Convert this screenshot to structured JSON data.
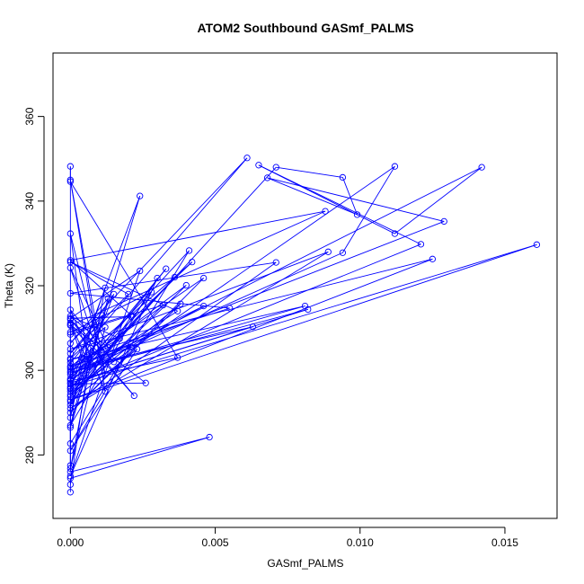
{
  "chart_data": {
    "type": "scatter",
    "title": "ATOM2 Southbound GASmf_PALMS",
    "xlabel": "GASmf_PALMS",
    "ylabel": "Theta (K)",
    "xlim": [
      -0.0006,
      0.0168
    ],
    "ylim": [
      265,
      375
    ],
    "x_ticks": [
      {
        "value": 0.0,
        "label": "0.000"
      },
      {
        "value": 0.005,
        "label": "0.005"
      },
      {
        "value": 0.01,
        "label": "0.010"
      },
      {
        "value": 0.015,
        "label": "0.015"
      }
    ],
    "y_ticks": [
      {
        "value": 280,
        "label": "280"
      },
      {
        "value": 300,
        "label": "300"
      },
      {
        "value": 320,
        "label": "320"
      },
      {
        "value": 340,
        "label": "340"
      },
      {
        "value": 360,
        "label": "360"
      }
    ],
    "grid": false,
    "connected": true,
    "color": "#0000ff",
    "marker": "open-circle",
    "points": [
      {
        "x": 0.0,
        "y": 271.2
      },
      {
        "x": 0.0,
        "y": 274.5
      },
      {
        "x": 0.0048,
        "y": 284.2
      },
      {
        "x": 0.0,
        "y": 276.0
      },
      {
        "x": 0.0,
        "y": 348.2
      },
      {
        "x": 0.0,
        "y": 344.6
      },
      {
        "x": 0.0037,
        "y": 303.0
      },
      {
        "x": 0.0,
        "y": 297.5
      },
      {
        "x": 0.0024,
        "y": 341.2
      },
      {
        "x": 0.0,
        "y": 286.5
      },
      {
        "x": 0.0013,
        "y": 317.0
      },
      {
        "x": 0.0,
        "y": 306.4
      },
      {
        "x": 0.0061,
        "y": 350.2
      },
      {
        "x": 0.0,
        "y": 301.8
      },
      {
        "x": 0.0,
        "y": 277.5
      },
      {
        "x": 0.0,
        "y": 308.5
      },
      {
        "x": 0.0021,
        "y": 313.0
      },
      {
        "x": 0.0,
        "y": 326.0
      },
      {
        "x": 0.0088,
        "y": 337.6
      },
      {
        "x": 0.0,
        "y": 310.6
      },
      {
        "x": 0.0,
        "y": 282.7
      },
      {
        "x": 0.0041,
        "y": 328.3
      },
      {
        "x": 0.0,
        "y": 298.0
      },
      {
        "x": 0.0042,
        "y": 325.6
      },
      {
        "x": 0.0,
        "y": 300.7
      },
      {
        "x": 0.0129,
        "y": 335.2
      },
      {
        "x": 0.0068,
        "y": 345.5
      },
      {
        "x": 0.0099,
        "y": 336.8
      },
      {
        "x": 0.0094,
        "y": 345.6
      },
      {
        "x": 0.0071,
        "y": 348.0
      },
      {
        "x": 0.0,
        "y": 295.0
      },
      {
        "x": 0.0112,
        "y": 348.2
      },
      {
        "x": 0.0094,
        "y": 327.8
      },
      {
        "x": 0.0,
        "y": 299.0
      },
      {
        "x": 0.0142,
        "y": 348.0
      },
      {
        "x": 0.0112,
        "y": 332.3
      },
      {
        "x": 0.0065,
        "y": 348.5
      },
      {
        "x": 0.0121,
        "y": 329.8
      },
      {
        "x": 0.0,
        "y": 296.2
      },
      {
        "x": 0.0161,
        "y": 329.7
      },
      {
        "x": 0.0,
        "y": 293.0
      },
      {
        "x": 0.0125,
        "y": 326.3
      },
      {
        "x": 0.0,
        "y": 305.0
      },
      {
        "x": 0.0089,
        "y": 328.0
      },
      {
        "x": 0.0,
        "y": 291.0
      },
      {
        "x": 0.0071,
        "y": 325.5
      },
      {
        "x": 0.0,
        "y": 318.2
      },
      {
        "x": 0.0055,
        "y": 314.7
      },
      {
        "x": 0.0,
        "y": 302.5
      },
      {
        "x": 0.0081,
        "y": 315.2
      },
      {
        "x": 0.0,
        "y": 299.5
      },
      {
        "x": 0.0082,
        "y": 314.4
      },
      {
        "x": 0.0,
        "y": 297.0
      },
      {
        "x": 0.0063,
        "y": 310.3
      },
      {
        "x": 0.0,
        "y": 300.3
      },
      {
        "x": 0.0046,
        "y": 321.8
      },
      {
        "x": 0.0,
        "y": 290.0
      },
      {
        "x": 0.0038,
        "y": 315.7
      },
      {
        "x": 0.0,
        "y": 294.3
      },
      {
        "x": 0.0036,
        "y": 322.0
      },
      {
        "x": 0.0,
        "y": 295.6
      },
      {
        "x": 0.0033,
        "y": 324.0
      },
      {
        "x": 0.0,
        "y": 296.8
      },
      {
        "x": 0.0026,
        "y": 297.0
      },
      {
        "x": 0.0,
        "y": 310.8
      },
      {
        "x": 0.0022,
        "y": 294.0
      },
      {
        "x": 0.0,
        "y": 312.0
      },
      {
        "x": 0.0015,
        "y": 302.0
      },
      {
        "x": 0.0,
        "y": 314.3
      },
      {
        "x": 0.0012,
        "y": 295.0
      },
      {
        "x": 0.0,
        "y": 345.0
      },
      {
        "x": 0.0012,
        "y": 299.0
      },
      {
        "x": 0.0,
        "y": 332.3
      },
      {
        "x": 0.0006,
        "y": 302.0
      },
      {
        "x": 0.0,
        "y": 311.2
      },
      {
        "x": 0.0004,
        "y": 303.0
      },
      {
        "x": 0.0,
        "y": 288.8
      },
      {
        "x": 0.0007,
        "y": 309.7
      },
      {
        "x": 0.0,
        "y": 324.2
      },
      {
        "x": 0.0013,
        "y": 305.4
      },
      {
        "x": 0.0,
        "y": 312.8
      },
      {
        "x": 0.0017,
        "y": 307.5
      },
      {
        "x": 0.0,
        "y": 301.0
      },
      {
        "x": 0.0021,
        "y": 305.5
      },
      {
        "x": 0.0,
        "y": 281.0
      },
      {
        "x": 0.0023,
        "y": 305.0
      },
      {
        "x": 0.0,
        "y": 292.6
      },
      {
        "x": 0.0028,
        "y": 318.5
      },
      {
        "x": 0.0,
        "y": 309.0
      },
      {
        "x": 0.0032,
        "y": 315.4
      },
      {
        "x": 0.0,
        "y": 293.8
      },
      {
        "x": 0.004,
        "y": 320.1
      },
      {
        "x": 0.0,
        "y": 299.8
      },
      {
        "x": 0.0046,
        "y": 315.2
      },
      {
        "x": 0.0,
        "y": 297.8
      },
      {
        "x": 0.0037,
        "y": 314.0
      },
      {
        "x": 0.0,
        "y": 325.6
      },
      {
        "x": 0.002,
        "y": 318.0
      },
      {
        "x": 0.0,
        "y": 304.0
      },
      {
        "x": 0.0011,
        "y": 313.0
      },
      {
        "x": 0.0,
        "y": 295.8
      },
      {
        "x": 0.0012,
        "y": 319.5
      },
      {
        "x": 0.0,
        "y": 276.8
      },
      {
        "x": 0.0012,
        "y": 310.2
      },
      {
        "x": 0.0,
        "y": 302.8
      },
      {
        "x": 0.0015,
        "y": 318.0
      },
      {
        "x": 0.0,
        "y": 291.8
      },
      {
        "x": 0.0021,
        "y": 312.7
      },
      {
        "x": 0.0,
        "y": 312.3
      },
      {
        "x": 0.0024,
        "y": 323.5
      },
      {
        "x": 0.0,
        "y": 275.0
      },
      {
        "x": 0.003,
        "y": 321.8
      },
      {
        "x": 0.0,
        "y": 287.0
      },
      {
        "x": 0.0007,
        "y": 305.2
      },
      {
        "x": 0.0,
        "y": 273.0
      }
    ]
  }
}
